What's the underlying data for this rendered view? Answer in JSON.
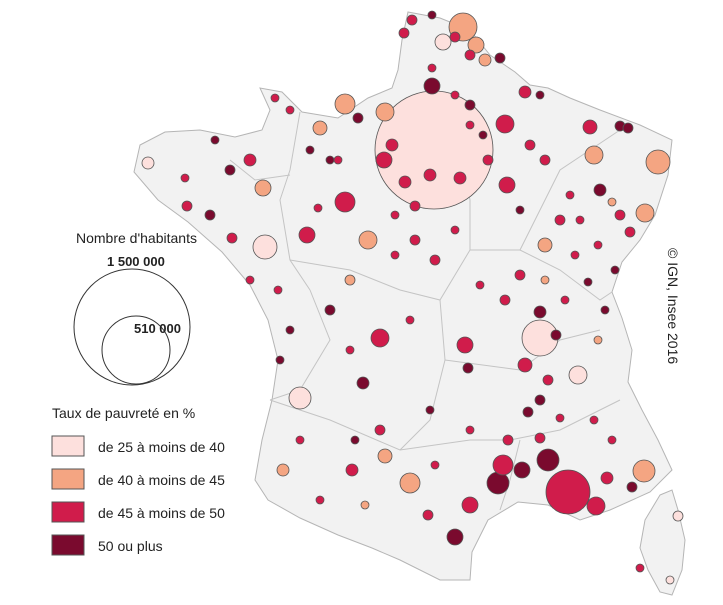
{
  "legend": {
    "size_title": "Nombre d'habitants",
    "size_large_label": "1 500 000",
    "size_small_label": "510 000",
    "color_title": "Taux de pauvreté en %",
    "classes": [
      {
        "label": "de 25 à moins de 40",
        "color": "#fde0dd"
      },
      {
        "label": "de 40 à moins de 45",
        "color": "#f4a582"
      },
      {
        "label": "de 45 à moins de 50",
        "color": "#d01c4b"
      },
      {
        "label": "50 ou plus",
        "color": "#7a0a2e"
      }
    ]
  },
  "credit": "© IGN, Insee 2016",
  "colors": {
    "land": "#f2f2f2",
    "border": "#b5b5b5",
    "circle_stroke": "#555555"
  }
}
